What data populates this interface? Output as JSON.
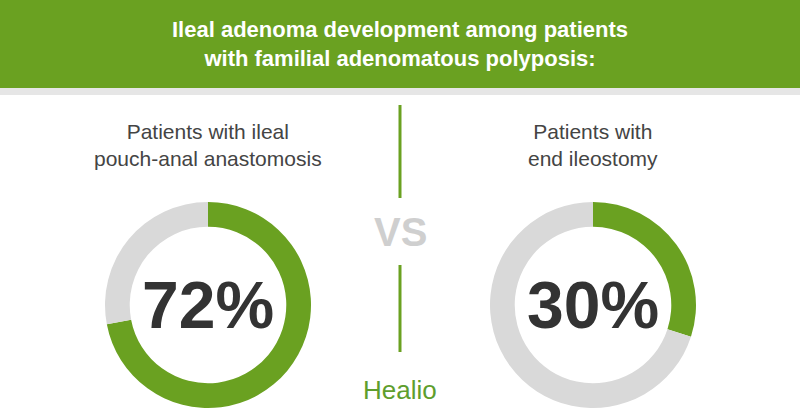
{
  "title": [
    "Ileal adenoma development among patients",
    "with familial adenomatous polyposis:"
  ],
  "separator": "VS",
  "logo": "Healio",
  "chart_data": [
    {
      "type": "pie",
      "title": [
        "Patients with ileal",
        "pouch-anal anastomosis"
      ],
      "values": [
        72,
        28
      ],
      "value_labels": [
        "72%",
        null
      ],
      "colors": [
        "#6aa121",
        "#d9d9d9"
      ]
    },
    {
      "type": "pie",
      "title": [
        "Patients with",
        "end ileostomy"
      ],
      "values": [
        30,
        70
      ],
      "value_labels": [
        "30%",
        null
      ],
      "colors": [
        "#6aa121",
        "#d9d9d9"
      ]
    }
  ]
}
